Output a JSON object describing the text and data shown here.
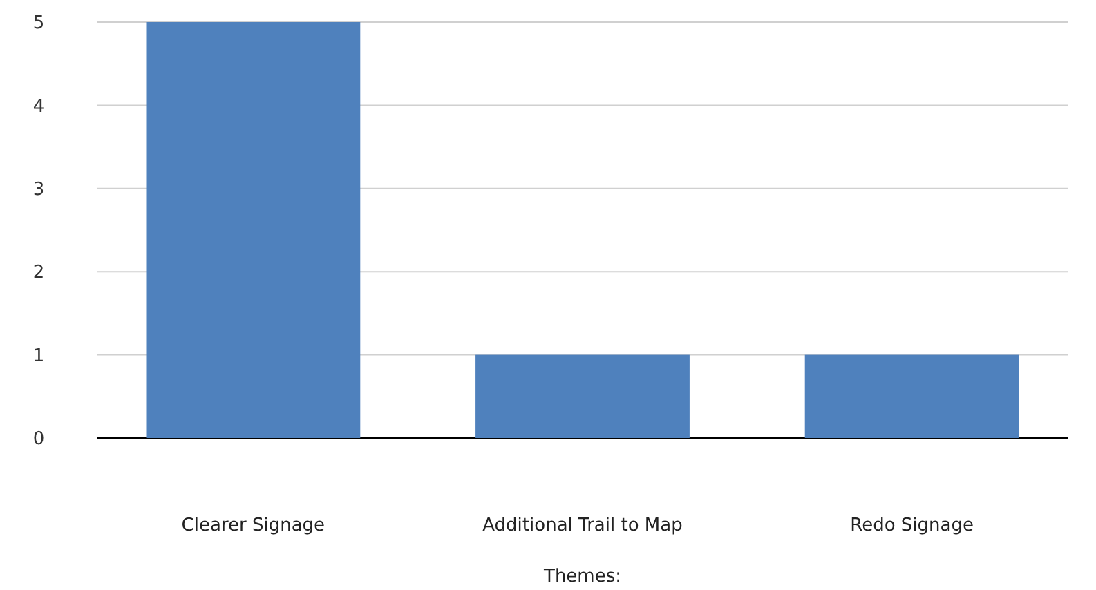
{
  "chart_data": {
    "type": "bar",
    "xlabel": "Themes:",
    "categories": [
      "Clearer Signage",
      "Additional Trail to Map",
      "Redo Signage"
    ],
    "values": [
      5,
      1,
      1
    ],
    "color": "#4f81bd",
    "ylim": [
      0,
      5
    ],
    "yticks": [
      0,
      1,
      2,
      3,
      4,
      5
    ],
    "grid": "y"
  }
}
